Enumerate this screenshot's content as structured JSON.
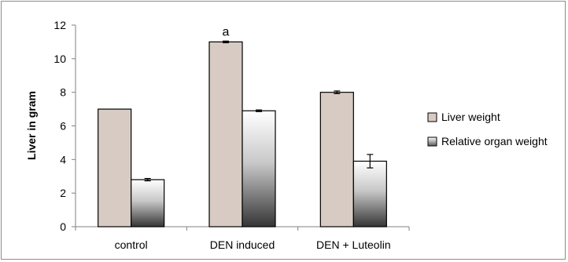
{
  "chart_data": {
    "type": "bar",
    "title": "",
    "xlabel": "",
    "ylabel": "Liver in gram",
    "ylim": [
      0,
      12
    ],
    "yticks": [
      0,
      2,
      4,
      6,
      8,
      10,
      12
    ],
    "grid": false,
    "legend_position": "right",
    "categories": [
      "control",
      "DEN induced",
      "DEN + Luteolin"
    ],
    "series": [
      {
        "name": "Liver weight",
        "values": [
          7.0,
          11.0,
          8.0
        ],
        "errors": [
          0,
          0.05,
          0.08
        ],
        "fill": "#d8cbc3"
      },
      {
        "name": "Relative organ weight",
        "values": [
          2.8,
          6.9,
          3.9
        ],
        "errors": [
          0.07,
          0.05,
          0.4
        ],
        "fill": "gradient-white-to-dark"
      }
    ],
    "annotations": [
      {
        "category": "DEN induced",
        "series": "Liver weight",
        "text": "a"
      }
    ]
  },
  "colors": {
    "liver_fill": "#d8cbc3",
    "gradient_top": "#ffffff",
    "gradient_bottom": "#3a3a3a",
    "bar_stroke": "#000000",
    "axis": "#808080"
  }
}
